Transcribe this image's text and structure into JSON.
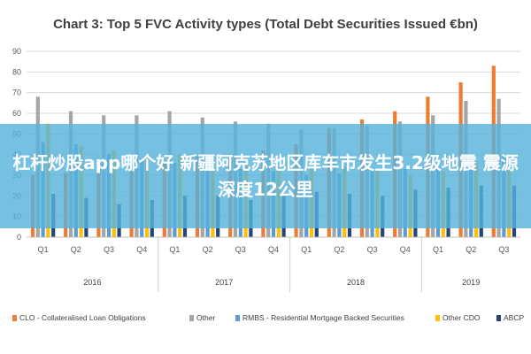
{
  "chart_data": {
    "type": "bar",
    "title": "Chart 3: Top 5 FVC Activity types (Total Debt Securities Issued €bn)",
    "ylim": [
      0,
      90
    ],
    "yticks": [
      0,
      10,
      20,
      30,
      40,
      50,
      60,
      70,
      80,
      90
    ],
    "categories": [
      "Q1",
      "Q2",
      "Q3",
      "Q4",
      "Q1",
      "Q2",
      "Q3",
      "Q4",
      "Q1",
      "Q2",
      "Q3",
      "Q4",
      "Q1",
      "Q2",
      "Q3"
    ],
    "years": [
      {
        "label": "2016",
        "count": 4
      },
      {
        "label": "2017",
        "count": 4
      },
      {
        "label": "2018",
        "count": 4
      },
      {
        "label": "2019",
        "count": 3
      }
    ],
    "grid": true,
    "legend_position": "bottom",
    "series": [
      {
        "name": "CLO - Collateralised Loan Obligations",
        "color": "#ED7D31",
        "values": [
          30,
          31,
          33,
          32,
          37,
          39,
          40,
          42,
          45,
          53,
          57,
          61,
          68,
          75,
          83
        ]
      },
      {
        "name": "Other",
        "color": "#A5A5A5",
        "values": [
          68,
          61,
          59,
          59,
          61,
          58,
          56,
          55,
          52,
          53,
          54,
          56,
          59,
          66,
          67
        ]
      },
      {
        "name": "RMBS - Residential Mortgage Backed Securities",
        "color": "#5B9BD5",
        "values": [
          46,
          45,
          40,
          38,
          36,
          34,
          33,
          32,
          30,
          31,
          33,
          33,
          34,
          38,
          40
        ]
      },
      {
        "name": "Other CDO",
        "color": "#FFC000",
        "values": [
          55,
          44,
          42,
          38,
          40,
          38,
          36,
          34,
          33,
          34,
          33,
          30,
          32,
          36,
          33
        ]
      },
      {
        "name": "ABCP",
        "color": "#264478",
        "values": [
          21,
          19,
          16,
          18,
          20,
          20,
          18,
          20,
          22,
          21,
          20,
          23,
          24,
          25,
          25
        ]
      }
    ]
  },
  "overlay": {
    "text": "杠杆炒股app哪个好 新疆阿克苏地区库车市发生3.2级地震 震源深度12公里"
  }
}
